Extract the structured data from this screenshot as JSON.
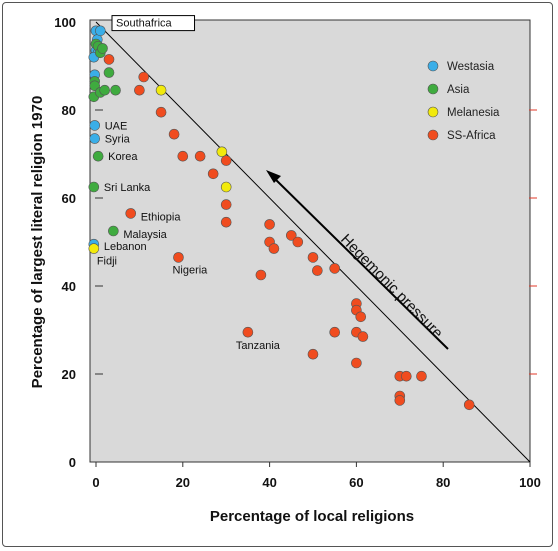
{
  "chart_data": {
    "type": "scatter",
    "xlabel": "Percentage of local religions",
    "ylabel": "Percentage of largest literal religion 1970",
    "xlim": [
      0,
      100
    ],
    "ylim": [
      0,
      100
    ],
    "x_ticks": [
      "0",
      "20",
      "40",
      "60",
      "80",
      "100"
    ],
    "y_ticks": [
      "0",
      "20",
      "40",
      "60",
      "80",
      "100"
    ],
    "grid": false,
    "legend_position": "top-right",
    "reference_line": {
      "from": [
        0,
        100
      ],
      "to": [
        100,
        0
      ]
    },
    "annotation": "Hegemonic pressure",
    "series": [
      {
        "name": "Westasia",
        "color": "#3aaee8",
        "points": [
          [
            0,
            98
          ],
          [
            0.3,
            96
          ],
          [
            1,
            98
          ],
          [
            0,
            93.5
          ],
          [
            0.5,
            93
          ],
          [
            -0.5,
            92
          ],
          [
            -0.3,
            88
          ],
          [
            -0.3,
            76.5
          ],
          [
            -0.3,
            73.5
          ],
          [
            -0.5,
            49.5
          ]
        ]
      },
      {
        "name": "Asia",
        "color": "#3fab3f",
        "points": [
          [
            0,
            95
          ],
          [
            0.5,
            94.5
          ],
          [
            1,
            93
          ],
          [
            1.5,
            94
          ],
          [
            3,
            88.5
          ],
          [
            -0.3,
            86.5
          ],
          [
            -0.3,
            85.5
          ],
          [
            -0.5,
            83
          ],
          [
            1,
            84
          ],
          [
            2,
            84.5
          ],
          [
            4.5,
            84.5
          ],
          [
            0.5,
            69.5
          ],
          [
            -0.5,
            62.5
          ],
          [
            4,
            52.5
          ]
        ]
      },
      {
        "name": "Melanesia",
        "color": "#f2ea0c",
        "points": [
          [
            15,
            84.5
          ],
          [
            29,
            70.5
          ],
          [
            30,
            62.5
          ],
          [
            -0.5,
            48.5
          ]
        ]
      },
      {
        "name": "SS-Africa",
        "color": "#f04c1f",
        "points": [
          [
            3,
            91.5
          ],
          [
            11,
            87.5
          ],
          [
            10,
            84.5
          ],
          [
            15,
            79.5
          ],
          [
            18,
            74.5
          ],
          [
            20,
            69.5
          ],
          [
            24,
            69.5
          ],
          [
            30,
            68.5
          ],
          [
            27,
            65.5
          ],
          [
            30,
            58.5
          ],
          [
            30,
            54.5
          ],
          [
            8,
            56.5
          ],
          [
            19,
            46.5
          ],
          [
            40,
            54
          ],
          [
            45,
            51.5
          ],
          [
            40,
            50
          ],
          [
            46.5,
            50
          ],
          [
            41,
            48.5
          ],
          [
            50,
            46.5
          ],
          [
            51,
            43.5
          ],
          [
            55,
            44
          ],
          [
            38,
            42.5
          ],
          [
            60,
            36
          ],
          [
            60,
            34.5
          ],
          [
            61,
            33
          ],
          [
            55,
            29.5
          ],
          [
            60,
            29.5
          ],
          [
            61.5,
            28.5
          ],
          [
            35,
            29.5
          ],
          [
            50,
            24.5
          ],
          [
            60,
            22.5
          ],
          [
            70,
            19.5
          ],
          [
            71.5,
            19.5
          ],
          [
            75,
            19.5
          ],
          [
            70,
            15
          ],
          [
            70,
            14
          ],
          [
            86,
            13
          ]
        ]
      }
    ],
    "point_labels": [
      {
        "text": "Southafrica",
        "x": 0,
        "y": 96,
        "boxed": true
      },
      {
        "text": "UAE",
        "x": -0.3,
        "y": 76.5
      },
      {
        "text": "Syria",
        "x": -0.3,
        "y": 73.5
      },
      {
        "text": "Korea",
        "x": 0.5,
        "y": 69.5
      },
      {
        "text": "Sri Lanka",
        "x": -0.5,
        "y": 62.5
      },
      {
        "text": "Ethiopia",
        "x": 8,
        "y": 56.5
      },
      {
        "text": "Malaysia",
        "x": 4,
        "y": 52.5
      },
      {
        "text": "Lebanon",
        "x": -0.5,
        "y": 49.5
      },
      {
        "text": "Fidji",
        "x": -0.5,
        "y": 48.5
      },
      {
        "text": "Nigeria",
        "x": 19,
        "y": 46.5
      },
      {
        "text": "Tanzania",
        "x": 35,
        "y": 29.5
      }
    ]
  }
}
